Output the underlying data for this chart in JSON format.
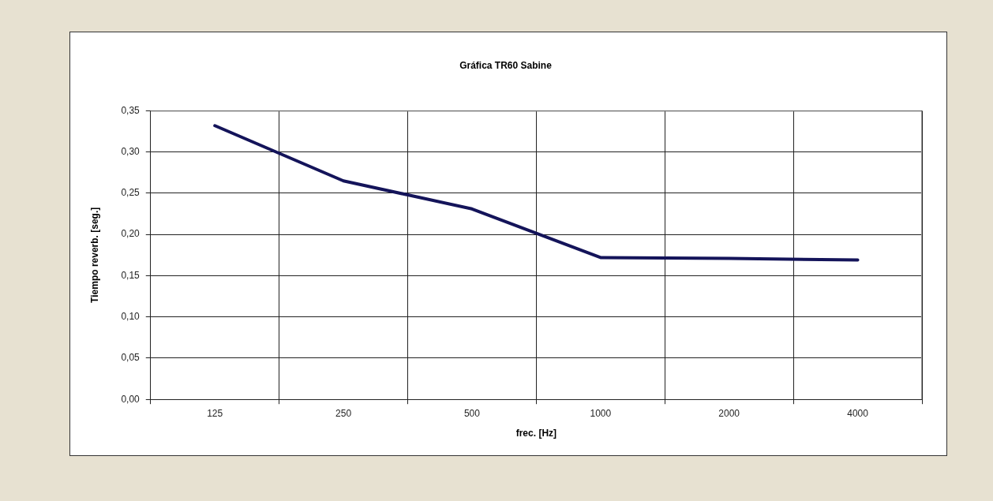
{
  "chart_data": {
    "type": "line",
    "title": "Gráfica TR60 Sabine",
    "xlabel": "frec. [Hz]",
    "ylabel": "Tiempo reverb. [seg.]",
    "categories": [
      "125",
      "250",
      "500",
      "1000",
      "2000",
      "4000"
    ],
    "series": [
      {
        "color": "#14145a",
        "values": [
          0.332,
          0.265,
          0.231,
          0.172,
          0.171,
          0.169
        ]
      }
    ],
    "ylim": [
      0,
      0.35
    ],
    "yticks": [
      {
        "value": 0,
        "label": "0,00"
      },
      {
        "value": 0.05,
        "label": "0,05"
      },
      {
        "value": 0.1,
        "label": "0,10"
      },
      {
        "value": 0.15,
        "label": "0,15"
      },
      {
        "value": 0.2,
        "label": "0,20"
      },
      {
        "value": 0.25,
        "label": "0,25"
      },
      {
        "value": 0.3,
        "label": "0,30"
      },
      {
        "value": 0.35,
        "label": "0,35"
      }
    ],
    "grid": true,
    "marker": "none",
    "line_style": "solid"
  }
}
